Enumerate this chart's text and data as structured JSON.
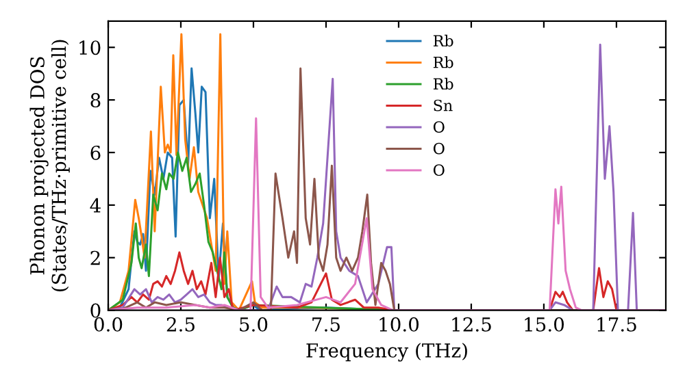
{
  "chart_data": {
    "type": "line",
    "xlabel": "Frequency (THz)",
    "ylabel": "Phonon projected DOS\n(States/THz·primitive cell)",
    "xlim": [
      0,
      19.2
    ],
    "ylim": [
      0,
      11
    ],
    "xticks": [
      {
        "value": 0,
        "label": "0.0"
      },
      {
        "value": 2.5,
        "label": "2.5"
      },
      {
        "value": 5,
        "label": "5.0"
      },
      {
        "value": 7.5,
        "label": "7.5"
      },
      {
        "value": 10,
        "label": "10.0"
      },
      {
        "value": 12.5,
        "label": "12.5"
      },
      {
        "value": 15,
        "label": "15.0"
      },
      {
        "value": 17.5,
        "label": "17.5"
      }
    ],
    "yticks": [
      0,
      2,
      4,
      6,
      8,
      10
    ],
    "grid": false,
    "legend": "top",
    "marker": "none",
    "line_style": "solid",
    "series": [
      {
        "name": "Rb",
        "color": "#1f77b4",
        "x": [
          0,
          0.4,
          0.7,
          0.9,
          1.0,
          1.1,
          1.2,
          1.3,
          1.45,
          1.6,
          1.75,
          1.9,
          2.05,
          2.2,
          2.32,
          2.45,
          2.6,
          2.75,
          2.87,
          3.0,
          3.1,
          3.22,
          3.35,
          3.5,
          3.65,
          3.8,
          3.95,
          4.1,
          4.3,
          4.5,
          5.0,
          5.1,
          5.3,
          6.0,
          7.5,
          9.8,
          19.2
        ],
        "values": [
          0,
          0.1,
          0.8,
          3.0,
          2.6,
          2.5,
          2.9,
          1.5,
          5.3,
          4.4,
          5.8,
          5.0,
          6.0,
          5.8,
          2.8,
          7.8,
          8.0,
          5.5,
          9.2,
          7.5,
          6.0,
          8.5,
          8.3,
          3.5,
          5.0,
          1.2,
          3.3,
          0.5,
          0.1,
          0,
          0.2,
          0.1,
          0,
          0.05,
          0.1,
          0,
          0
        ]
      },
      {
        "name": "Rb",
        "color": "#ff7f0e",
        "x": [
          0,
          0.4,
          0.7,
          0.93,
          1.05,
          1.15,
          1.25,
          1.47,
          1.6,
          1.81,
          1.95,
          2.05,
          2.15,
          2.24,
          2.35,
          2.52,
          2.65,
          2.8,
          2.95,
          3.1,
          3.25,
          3.4,
          3.55,
          3.7,
          3.86,
          4.0,
          4.1,
          4.25,
          4.5,
          4.95,
          5.05,
          5.3,
          6.0,
          7.0,
          9.8,
          19.2
        ],
        "values": [
          0,
          0.3,
          1.5,
          4.2,
          3.5,
          2.8,
          2.0,
          6.8,
          3.0,
          8.5,
          6.0,
          6.3,
          6.0,
          9.7,
          5.9,
          10.5,
          6.5,
          5.0,
          6.2,
          4.5,
          4.0,
          3.5,
          2.5,
          1.5,
          10.5,
          1.0,
          3.0,
          0.3,
          0,
          1.1,
          0.3,
          0.1,
          0.1,
          0.1,
          0,
          0
        ]
      },
      {
        "name": "Rb",
        "color": "#2ca02c",
        "x": [
          0,
          0.5,
          0.8,
          0.95,
          1.05,
          1.15,
          1.3,
          1.4,
          1.55,
          1.7,
          1.85,
          2.0,
          2.1,
          2.25,
          2.4,
          2.55,
          2.7,
          2.85,
          3.0,
          3.15,
          3.3,
          3.45,
          3.6,
          3.75,
          3.9,
          4.0,
          4.1,
          4.3,
          4.5,
          5.0,
          9.8,
          19.2
        ],
        "values": [
          0,
          0.4,
          1.8,
          3.3,
          2.0,
          1.6,
          2.5,
          1.3,
          4.4,
          3.8,
          5.2,
          4.6,
          5.2,
          5.0,
          6.0,
          5.3,
          5.8,
          4.5,
          4.8,
          5.2,
          4.0,
          2.6,
          2.2,
          1.5,
          0.8,
          2.2,
          0.5,
          0.1,
          0,
          0.2,
          0,
          0
        ]
      },
      {
        "name": "Sn",
        "color": "#d62728",
        "x": [
          0,
          0.5,
          0.8,
          1.0,
          1.2,
          1.4,
          1.55,
          1.7,
          1.85,
          2.0,
          2.15,
          2.3,
          2.45,
          2.6,
          2.75,
          2.9,
          3.05,
          3.2,
          3.35,
          3.55,
          3.7,
          3.85,
          4.0,
          4.15,
          4.3,
          5.0,
          6.5,
          7.0,
          7.5,
          7.7,
          8.0,
          8.5,
          8.8,
          9.3,
          9.8,
          15.2,
          15.4,
          15.55,
          15.65,
          15.8,
          16.0,
          16.7,
          16.9,
          17.05,
          17.2,
          17.35,
          17.5,
          19.2
        ],
        "values": [
          0,
          0.2,
          0.5,
          0.3,
          0.6,
          0.4,
          1.0,
          1.1,
          0.9,
          1.3,
          1.0,
          1.5,
          2.2,
          1.5,
          1.0,
          1.5,
          0.8,
          1.1,
          0.6,
          1.8,
          0.5,
          2.0,
          0.5,
          0.8,
          0,
          0.2,
          0.1,
          0.3,
          1.4,
          0.4,
          0.2,
          0.4,
          0.1,
          0.1,
          0,
          0,
          0.7,
          0.5,
          0.7,
          0.3,
          0,
          0,
          1.6,
          0.5,
          1.1,
          0.8,
          0,
          0
        ]
      },
      {
        "name": "O",
        "color": "#9467bd",
        "x": [
          0,
          0.5,
          0.9,
          1.1,
          1.3,
          1.5,
          1.7,
          1.9,
          2.1,
          2.3,
          2.5,
          2.7,
          2.9,
          3.1,
          3.3,
          3.5,
          3.7,
          3.9,
          4.2,
          4.5,
          5.5,
          5.8,
          6.0,
          6.3,
          6.6,
          6.8,
          7.0,
          7.2,
          7.4,
          7.73,
          7.85,
          8.0,
          8.3,
          8.6,
          8.9,
          9.3,
          9.6,
          9.75,
          9.85,
          15.2,
          15.4,
          15.7,
          16.0,
          16.7,
          16.94,
          17.1,
          17.26,
          17.4,
          17.55,
          17.9,
          18.07,
          18.2,
          19.2
        ],
        "values": [
          0,
          0.1,
          0.8,
          0.6,
          0.8,
          0.3,
          0.5,
          0.4,
          0.6,
          0.3,
          0.4,
          0.6,
          0.8,
          0.5,
          0.6,
          0.3,
          0.2,
          0.2,
          0.1,
          0,
          0,
          0.9,
          0.5,
          0.5,
          0.3,
          1.0,
          0.9,
          2.0,
          3.3,
          8.8,
          3.0,
          2.0,
          1.5,
          1.3,
          0.3,
          1.0,
          2.4,
          2.4,
          0,
          0,
          0.3,
          0.2,
          0,
          0,
          10.1,
          5.0,
          7.0,
          4.5,
          0,
          0,
          3.7,
          0,
          0
        ]
      },
      {
        "name": "O",
        "color": "#8c564b",
        "x": [
          0,
          0.5,
          1.0,
          1.3,
          1.6,
          2.0,
          2.5,
          3.0,
          3.5,
          4.0,
          4.5,
          5.0,
          5.3,
          5.6,
          5.76,
          6.0,
          6.2,
          6.4,
          6.5,
          6.62,
          6.8,
          6.95,
          7.1,
          7.25,
          7.4,
          7.55,
          7.7,
          7.85,
          8.0,
          8.2,
          8.4,
          8.6,
          8.75,
          8.92,
          9.05,
          9.2,
          9.4,
          9.55,
          9.7,
          9.85,
          19.2
        ],
        "values": [
          0,
          0.05,
          0.3,
          0.1,
          0.3,
          0.2,
          0.3,
          0.2,
          0.1,
          0.1,
          0,
          0.3,
          0,
          0,
          5.2,
          3.5,
          2.0,
          3.0,
          1.8,
          9.2,
          3.5,
          2.5,
          5.0,
          2.0,
          1.5,
          2.5,
          5.5,
          2.0,
          1.5,
          2.0,
          1.5,
          2.0,
          3.0,
          4.4,
          1.8,
          0.2,
          1.8,
          1.5,
          1.0,
          0,
          0
        ]
      },
      {
        "name": "O",
        "color": "#e377c2",
        "x": [
          0,
          1.0,
          2.0,
          3.0,
          3.5,
          4.0,
          4.5,
          4.9,
          5.09,
          5.25,
          5.5,
          6.5,
          7.5,
          8.0,
          8.5,
          8.9,
          9.1,
          9.4,
          9.8,
          15.2,
          15.4,
          15.5,
          15.6,
          15.75,
          15.9,
          16.1,
          16.3,
          19.2
        ],
        "values": [
          0,
          0.1,
          0.1,
          0.2,
          0.1,
          0.2,
          0,
          0,
          7.3,
          0.5,
          0.1,
          0.2,
          0.5,
          0.3,
          1.0,
          3.5,
          0.8,
          0.2,
          0,
          0,
          4.6,
          3.3,
          4.7,
          1.5,
          0.8,
          0.1,
          0,
          0
        ]
      }
    ]
  }
}
